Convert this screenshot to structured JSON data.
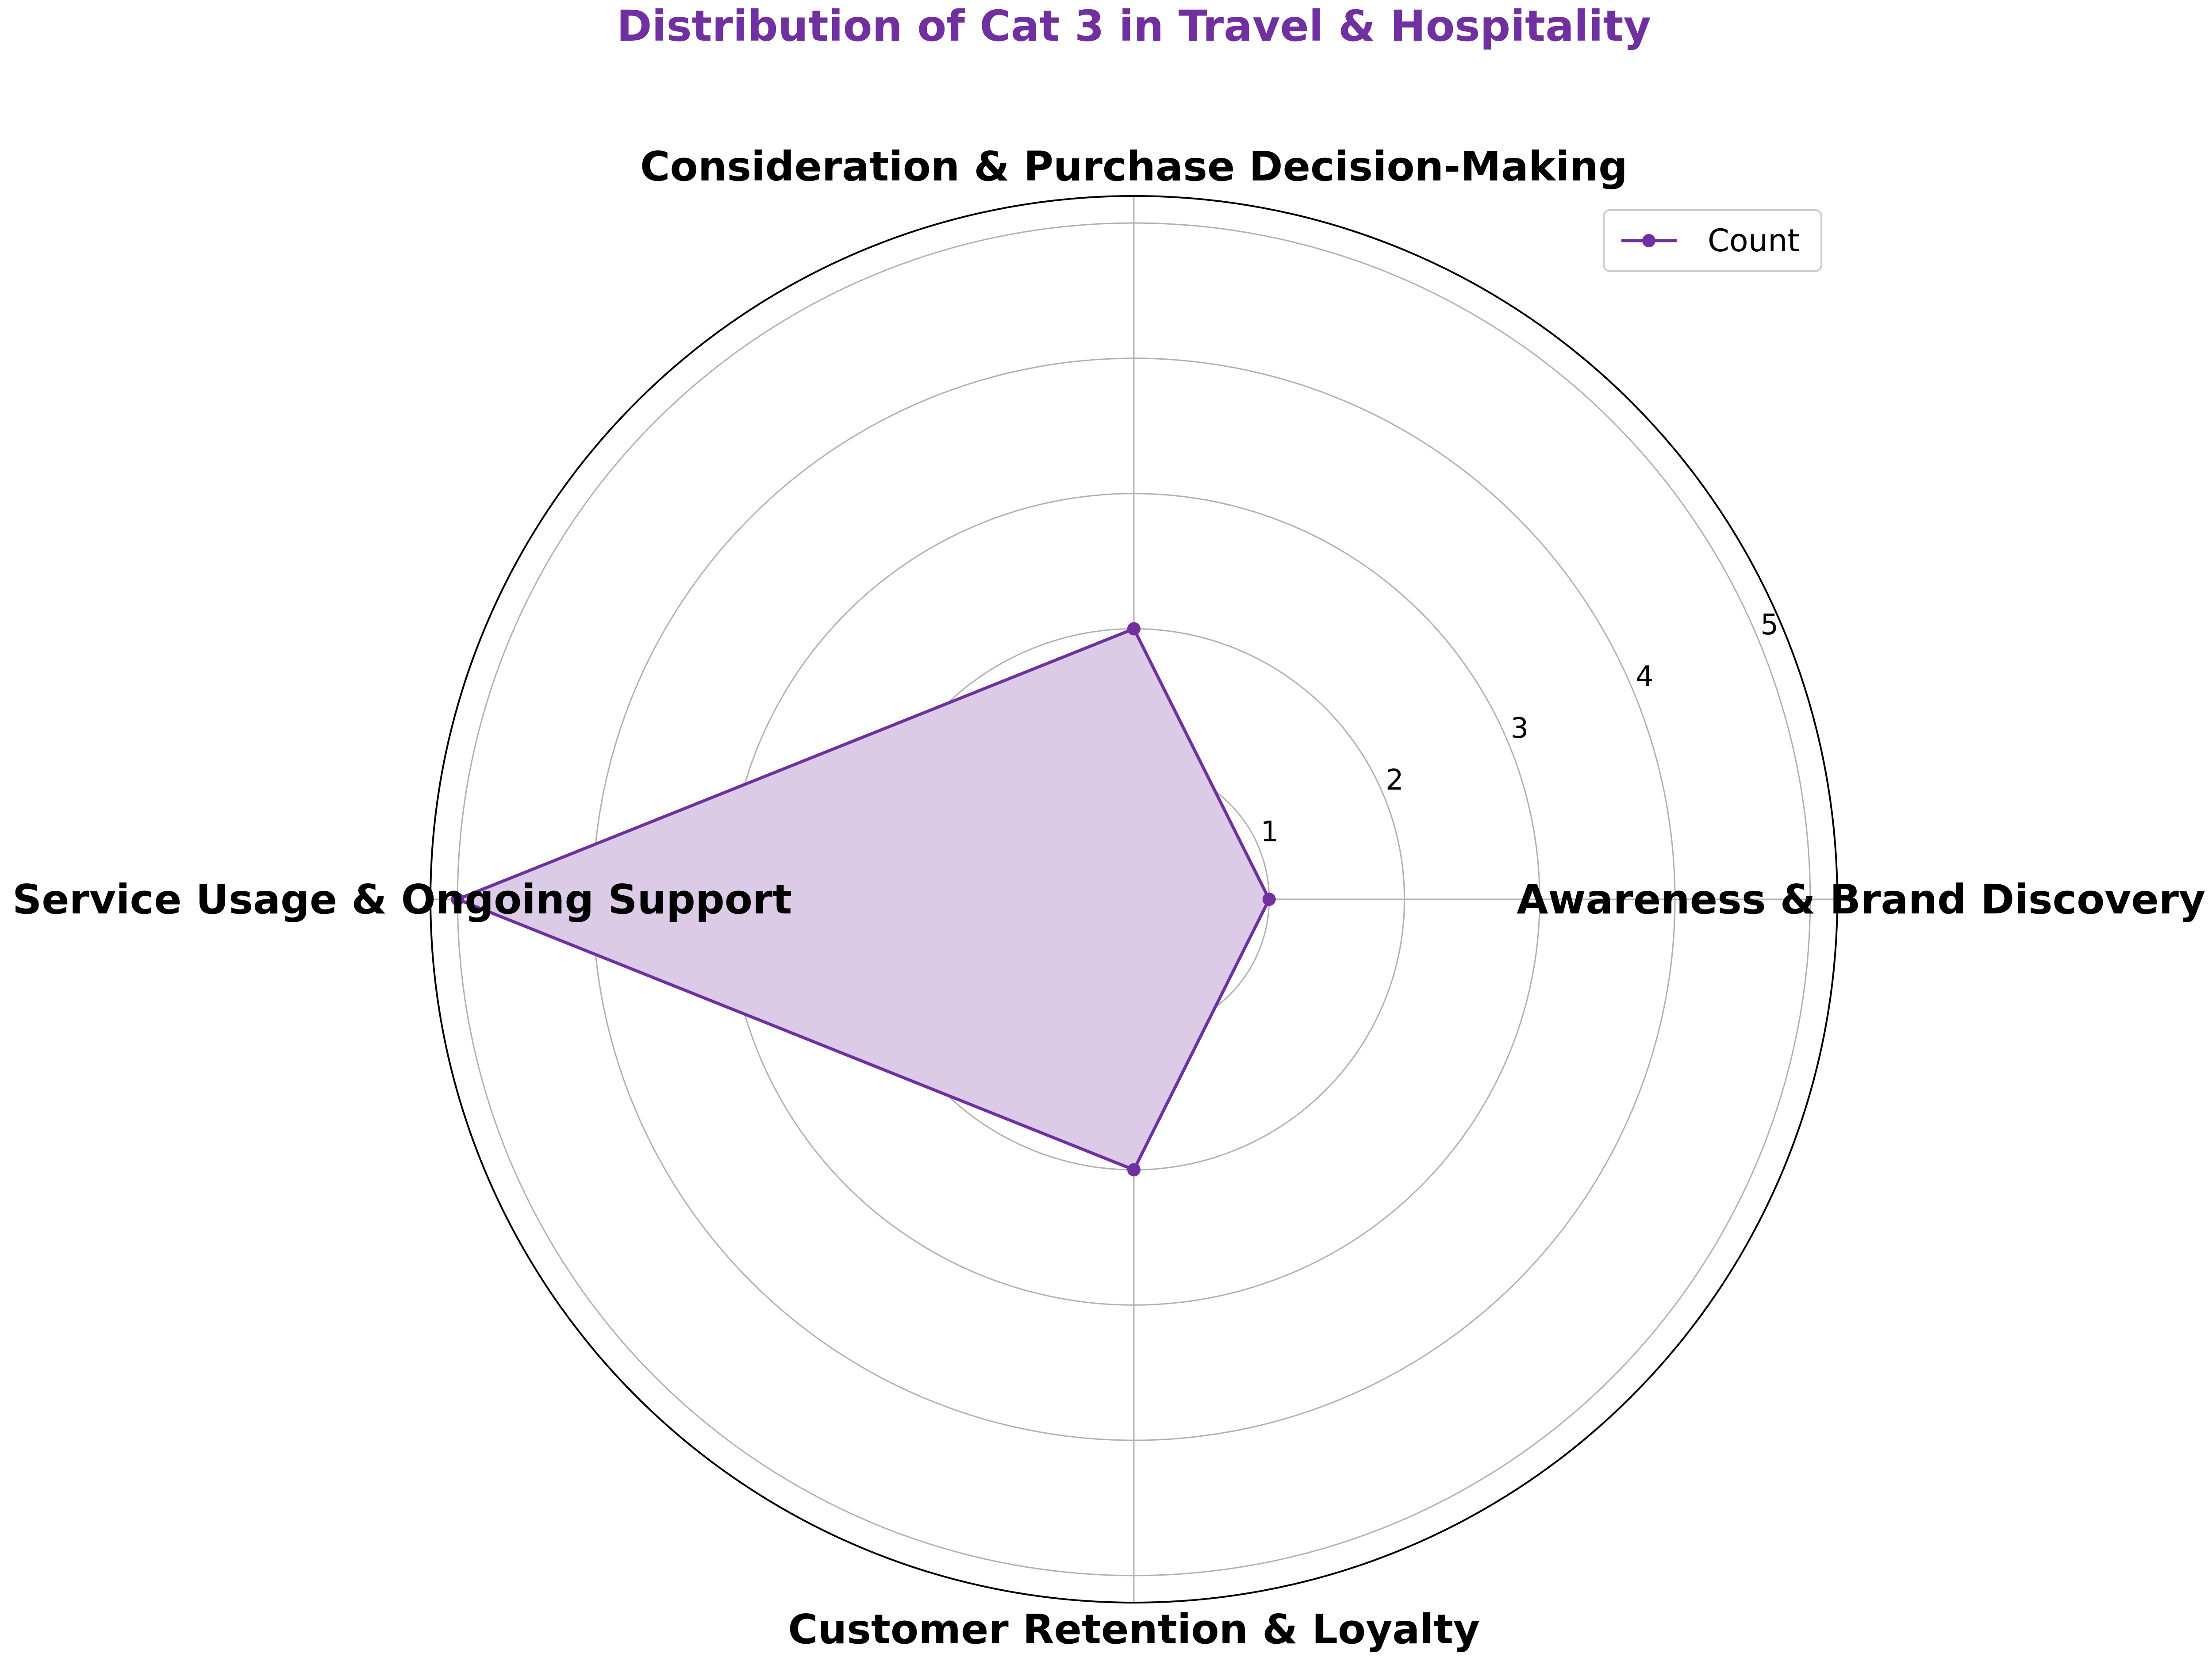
{
  "chart_data": {
    "type": "radar",
    "title": "Distribution of Cat 3 in Travel & Hospitality",
    "title_color": "#7030a0",
    "categories": [
      "Awareness & Brand Discovery",
      "Consideration & Purchase Decision-Making",
      "Service Usage & Ongoing Support",
      "Customer Retention & Loyalty"
    ],
    "series": [
      {
        "name": "Count",
        "values": [
          1,
          2,
          5,
          2
        ],
        "color": "#7030a0",
        "fill_color": "#dccbe6"
      }
    ],
    "radial_ticks": [
      "1",
      "2",
      "3",
      "4",
      "5"
    ],
    "rlim": [
      0,
      5.2
    ],
    "grid": true,
    "legend_position": "top-right"
  }
}
